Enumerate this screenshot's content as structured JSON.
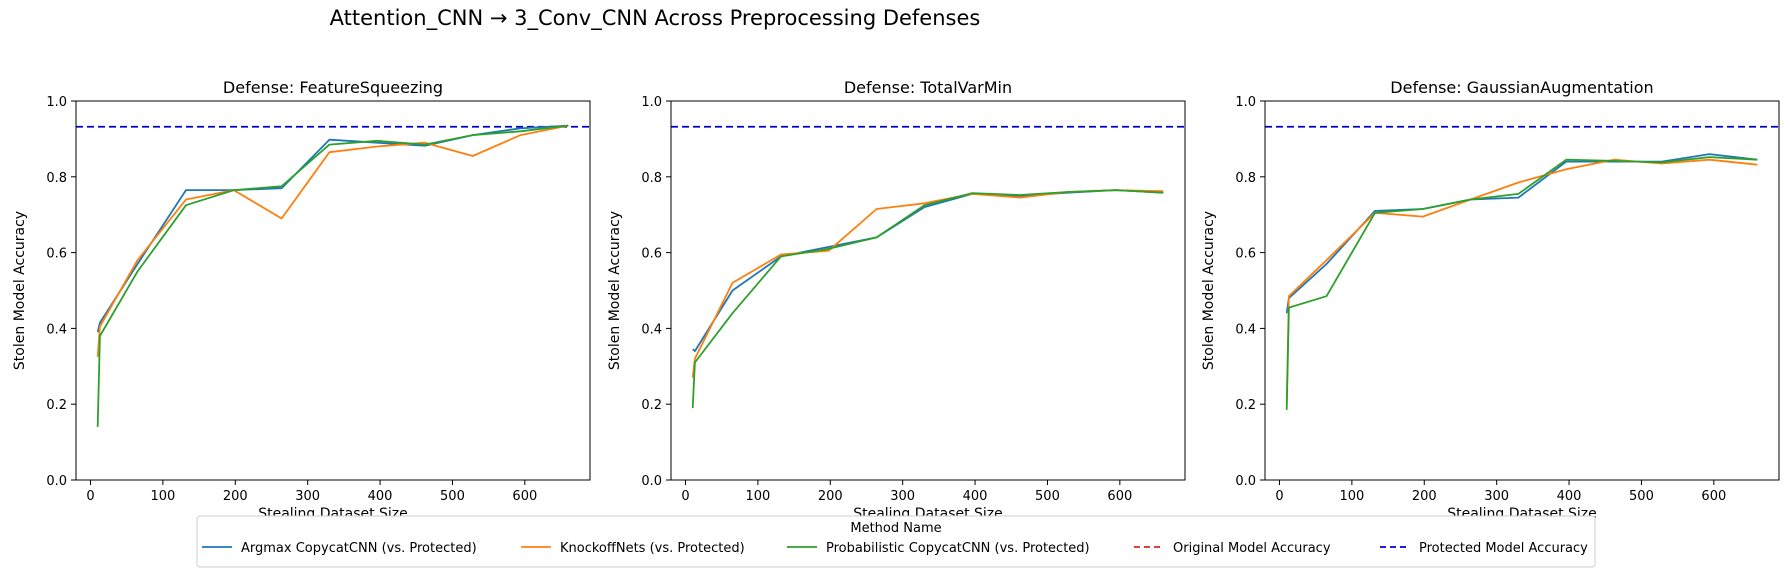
{
  "suptitle": "Attention_CNN → 3_Conv_CNN Across Preprocessing Defenses",
  "legend": {
    "title": "Method Name",
    "placement": "bottom-center",
    "entries": [
      {
        "label": "Argmax CopycatCNN (vs. Protected)",
        "color": "#1f77b4",
        "style": "solid"
      },
      {
        "label": "KnockoffNets (vs. Protected)",
        "color": "#ff7f0e",
        "style": "solid"
      },
      {
        "label": "Probabilistic CopycatCNN (vs. Protected)",
        "color": "#2ca02c",
        "style": "solid"
      },
      {
        "label": "Original Model Accuracy",
        "color": "#d62728",
        "style": "dashed"
      },
      {
        "label": "Protected Model Accuracy",
        "color": "#0000cc",
        "style": "dashed"
      }
    ]
  },
  "chart_data": [
    {
      "type": "line",
      "title": "Defense: FeatureSqueezing",
      "xlabel": "Stealing Dataset Size",
      "ylabel": "Stolen Model Accuracy",
      "xlim": [
        -20,
        690
      ],
      "ylim": [
        0.0,
        1.0
      ],
      "xticks": [
        "0",
        "100",
        "200",
        "300",
        "400",
        "500",
        "600"
      ],
      "yticks": [
        "0.0",
        "0.2",
        "0.4",
        "0.6",
        "0.8",
        "1.0"
      ],
      "hlines": [
        {
          "name": "Protected Model Accuracy",
          "y": 0.932,
          "color": "#0000cc"
        }
      ],
      "series": [
        {
          "name": "Argmax CopycatCNN (vs. Protected)",
          "color": "#1f77b4",
          "x": [
            10,
            13,
            65,
            132,
            198,
            264,
            330,
            396,
            462,
            528,
            594,
            660
          ],
          "y": [
            0.39,
            0.415,
            0.57,
            0.765,
            0.765,
            0.77,
            0.898,
            0.89,
            0.882,
            0.91,
            0.928,
            0.935
          ]
        },
        {
          "name": "KnockoffNets (vs. Protected)",
          "color": "#ff7f0e",
          "x": [
            10,
            13,
            65,
            132,
            198,
            264,
            330,
            396,
            462,
            528,
            594,
            660
          ],
          "y": [
            0.325,
            0.405,
            0.58,
            0.74,
            0.765,
            0.69,
            0.865,
            0.88,
            0.89,
            0.855,
            0.91,
            0.935
          ]
        },
        {
          "name": "Probabilistic CopycatCNN (vs. Protected)",
          "color": "#2ca02c",
          "x": [
            10,
            13,
            65,
            132,
            198,
            264,
            330,
            396,
            462,
            528,
            594,
            660
          ],
          "y": [
            0.14,
            0.38,
            0.55,
            0.725,
            0.765,
            0.775,
            0.885,
            0.895,
            0.885,
            0.91,
            0.92,
            0.935
          ]
        }
      ]
    },
    {
      "type": "line",
      "title": "Defense: TotalVarMin",
      "xlabel": "Stealing Dataset Size",
      "ylabel": "Stolen Model Accuracy",
      "xlim": [
        -20,
        690
      ],
      "ylim": [
        0.0,
        1.0
      ],
      "xticks": [
        "0",
        "100",
        "200",
        "300",
        "400",
        "500",
        "600"
      ],
      "yticks": [
        "0.0",
        "0.2",
        "0.4",
        "0.6",
        "0.8",
        "1.0"
      ],
      "hlines": [
        {
          "name": "Protected Model Accuracy",
          "y": 0.932,
          "color": "#0000cc"
        }
      ],
      "series": [
        {
          "name": "Argmax CopycatCNN (vs. Protected)",
          "color": "#1f77b4",
          "x": [
            10,
            13,
            65,
            132,
            198,
            264,
            330,
            396,
            462,
            528,
            594,
            660
          ],
          "y": [
            0.345,
            0.34,
            0.5,
            0.59,
            0.615,
            0.64,
            0.72,
            0.755,
            0.75,
            0.758,
            0.765,
            0.758
          ]
        },
        {
          "name": "KnockoffNets (vs. Protected)",
          "color": "#ff7f0e",
          "x": [
            10,
            13,
            65,
            132,
            198,
            264,
            330,
            396,
            462,
            528,
            594,
            660
          ],
          "y": [
            0.27,
            0.32,
            0.52,
            0.595,
            0.605,
            0.715,
            0.73,
            0.755,
            0.745,
            0.76,
            0.765,
            0.762
          ]
        },
        {
          "name": "Probabilistic CopycatCNN (vs. Protected)",
          "color": "#2ca02c",
          "x": [
            10,
            13,
            65,
            132,
            198,
            264,
            330,
            396,
            462,
            528,
            594,
            660
          ],
          "y": [
            0.19,
            0.31,
            0.44,
            0.59,
            0.61,
            0.64,
            0.725,
            0.757,
            0.752,
            0.76,
            0.765,
            0.758
          ]
        }
      ]
    },
    {
      "type": "line",
      "title": "Defense: GaussianAugmentation",
      "xlabel": "Stealing Dataset Size",
      "ylabel": "Stolen Model Accuracy",
      "xlim": [
        -20,
        690
      ],
      "ylim": [
        0.0,
        1.0
      ],
      "xticks": [
        "0",
        "100",
        "200",
        "300",
        "400",
        "500",
        "600"
      ],
      "yticks": [
        "0.0",
        "0.2",
        "0.4",
        "0.6",
        "0.8",
        "1.0"
      ],
      "hlines": [
        {
          "name": "Protected Model Accuracy",
          "y": 0.932,
          "color": "#0000cc"
        }
      ],
      "series": [
        {
          "name": "Argmax CopycatCNN (vs. Protected)",
          "color": "#1f77b4",
          "x": [
            10,
            13,
            65,
            132,
            198,
            264,
            330,
            396,
            462,
            528,
            594,
            660
          ],
          "y": [
            0.44,
            0.48,
            0.57,
            0.71,
            0.715,
            0.74,
            0.745,
            0.84,
            0.84,
            0.84,
            0.86,
            0.845
          ]
        },
        {
          "name": "KnockoffNets (vs. Protected)",
          "color": "#ff7f0e",
          "x": [
            10,
            13,
            65,
            132,
            198,
            264,
            330,
            396,
            462,
            528,
            594,
            660
          ],
          "y": [
            0.2,
            0.485,
            0.58,
            0.705,
            0.695,
            0.74,
            0.785,
            0.82,
            0.845,
            0.835,
            0.845,
            0.832
          ]
        },
        {
          "name": "Probabilistic CopycatCNN (vs. Protected)",
          "color": "#2ca02c",
          "x": [
            10,
            13,
            65,
            132,
            198,
            264,
            330,
            396,
            462,
            528,
            594,
            660
          ],
          "y": [
            0.185,
            0.455,
            0.485,
            0.705,
            0.715,
            0.74,
            0.755,
            0.845,
            0.842,
            0.838,
            0.852,
            0.845
          ]
        }
      ]
    }
  ]
}
